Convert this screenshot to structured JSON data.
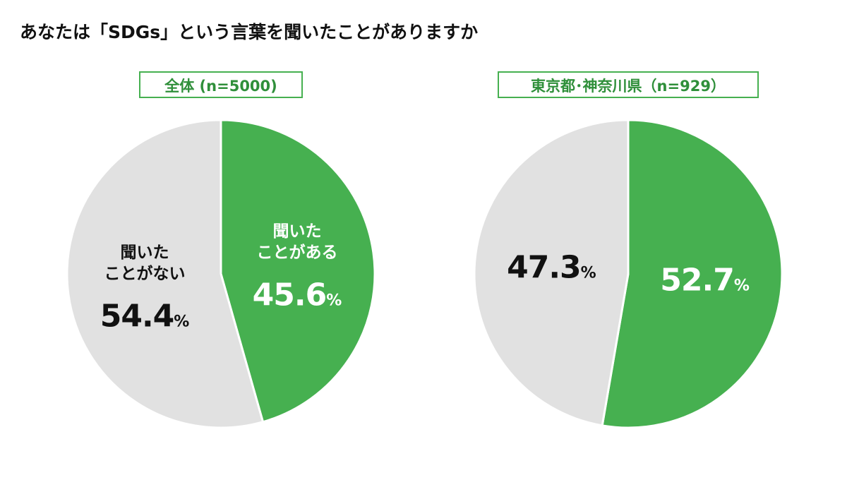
{
  "title": "あなたは「SDGs」という言葉を聞いたことがありますか",
  "chart_data": [
    {
      "type": "pie",
      "title": "全体 (n=5000)",
      "categories": [
        "聞いた\nことがある",
        "聞いた\nことがない"
      ],
      "values": [
        45.6,
        54.4
      ],
      "unit": "%",
      "colors": [
        "#46b050",
        "#e1e1e1"
      ]
    },
    {
      "type": "pie",
      "title": "東京都･神奈川県（n=929）",
      "values": [
        52.7,
        47.3
      ],
      "unit": "%",
      "colors": [
        "#46b050",
        "#e1e1e1"
      ]
    }
  ]
}
